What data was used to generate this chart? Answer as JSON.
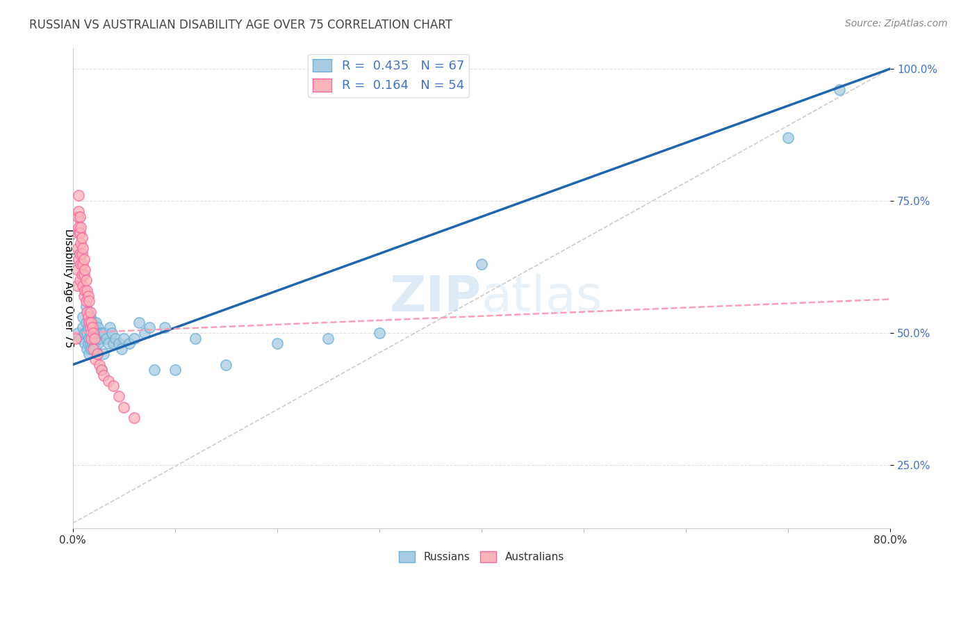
{
  "title": "RUSSIAN VS AUSTRALIAN DISABILITY AGE OVER 75 CORRELATION CHART",
  "source": "Source: ZipAtlas.com",
  "ylabel": "Disability Age Over 75",
  "xmin": 0.0,
  "xmax": 0.8,
  "ymin": 0.13,
  "ymax": 1.04,
  "legend_r_russian": "0.435",
  "legend_n_russian": "67",
  "legend_r_australian": "0.164",
  "legend_n_australian": "54",
  "russian_color": "#a8cce4",
  "russian_edge_color": "#6baed6",
  "australian_color": "#fbb4b9",
  "australian_edge_color": "#f768a1",
  "trendline_russian_color": "#2166ac",
  "trendline_australian_color": "#fa9fb5",
  "watermark_color": "#c8dff0",
  "label_color": "#4472c4",
  "grid_color": "#e0e0e0",
  "russians_x": [
    0.005,
    0.008,
    0.01,
    0.01,
    0.012,
    0.012,
    0.013,
    0.013,
    0.014,
    0.014,
    0.015,
    0.015,
    0.015,
    0.016,
    0.016,
    0.016,
    0.017,
    0.017,
    0.017,
    0.018,
    0.018,
    0.018,
    0.019,
    0.019,
    0.02,
    0.02,
    0.021,
    0.021,
    0.022,
    0.022,
    0.023,
    0.023,
    0.024,
    0.024,
    0.025,
    0.025,
    0.026,
    0.027,
    0.028,
    0.029,
    0.03,
    0.031,
    0.033,
    0.035,
    0.036,
    0.038,
    0.04,
    0.042,
    0.045,
    0.048,
    0.05,
    0.055,
    0.06,
    0.065,
    0.07,
    0.075,
    0.08,
    0.09,
    0.1,
    0.12,
    0.15,
    0.2,
    0.25,
    0.3,
    0.4,
    0.7,
    0.75
  ],
  "russians_y": [
    0.5,
    0.49,
    0.51,
    0.53,
    0.48,
    0.5,
    0.52,
    0.55,
    0.47,
    0.5,
    0.48,
    0.51,
    0.54,
    0.46,
    0.49,
    0.52,
    0.48,
    0.5,
    0.53,
    0.47,
    0.5,
    0.52,
    0.48,
    0.51,
    0.49,
    0.52,
    0.48,
    0.51,
    0.47,
    0.5,
    0.49,
    0.52,
    0.46,
    0.49,
    0.48,
    0.51,
    0.49,
    0.5,
    0.43,
    0.5,
    0.46,
    0.5,
    0.49,
    0.48,
    0.51,
    0.5,
    0.48,
    0.49,
    0.48,
    0.47,
    0.49,
    0.48,
    0.49,
    0.52,
    0.5,
    0.51,
    0.43,
    0.51,
    0.43,
    0.49,
    0.44,
    0.48,
    0.49,
    0.5,
    0.63,
    0.87,
    0.96
  ],
  "australians_x": [
    0.003,
    0.004,
    0.004,
    0.005,
    0.005,
    0.005,
    0.006,
    0.006,
    0.006,
    0.006,
    0.007,
    0.007,
    0.007,
    0.007,
    0.008,
    0.008,
    0.008,
    0.009,
    0.009,
    0.009,
    0.01,
    0.01,
    0.01,
    0.011,
    0.011,
    0.011,
    0.012,
    0.012,
    0.013,
    0.013,
    0.014,
    0.014,
    0.015,
    0.015,
    0.016,
    0.016,
    0.017,
    0.017,
    0.018,
    0.018,
    0.019,
    0.02,
    0.02,
    0.021,
    0.022,
    0.024,
    0.026,
    0.028,
    0.03,
    0.035,
    0.04,
    0.045,
    0.05,
    0.06
  ],
  "australians_y": [
    0.49,
    0.62,
    0.59,
    0.72,
    0.69,
    0.66,
    0.76,
    0.73,
    0.7,
    0.64,
    0.72,
    0.69,
    0.65,
    0.6,
    0.7,
    0.67,
    0.63,
    0.68,
    0.65,
    0.61,
    0.66,
    0.63,
    0.59,
    0.64,
    0.61,
    0.57,
    0.62,
    0.58,
    0.6,
    0.56,
    0.58,
    0.54,
    0.57,
    0.53,
    0.56,
    0.52,
    0.54,
    0.51,
    0.52,
    0.49,
    0.51,
    0.5,
    0.47,
    0.49,
    0.45,
    0.46,
    0.44,
    0.43,
    0.42,
    0.41,
    0.4,
    0.38,
    0.36,
    0.34
  ]
}
